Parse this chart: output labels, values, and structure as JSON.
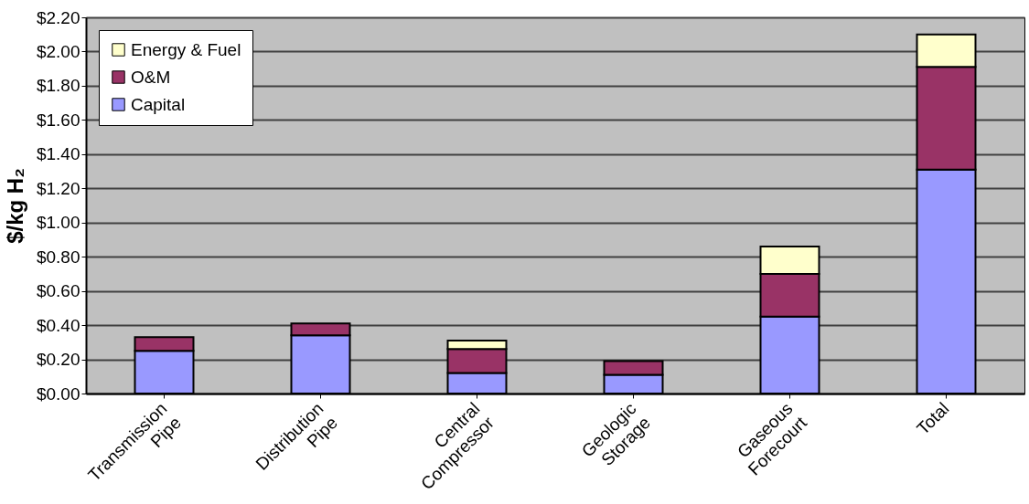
{
  "chart_data": {
    "type": "bar",
    "stacked": true,
    "ylabel": "$/kg H₂",
    "categories": [
      "Transmission\nPipe",
      "Distribution\nPipe",
      "Central\nCompressor",
      "Geologic\nStorage",
      "Gaseous\nForecourt",
      "Total"
    ],
    "series": [
      {
        "name": "Capital",
        "color": "#9999ff",
        "values": [
          0.25,
          0.34,
          0.12,
          0.11,
          0.45,
          1.31
        ]
      },
      {
        "name": "O&M",
        "color": "#993366",
        "values": [
          0.08,
          0.07,
          0.14,
          0.08,
          0.25,
          0.6
        ]
      },
      {
        "name": "Energy & Fuel",
        "color": "#ffffcc",
        "values": [
          null,
          null,
          0.05,
          null,
          0.16,
          0.19
        ]
      }
    ],
    "ylim": [
      0,
      2.2
    ],
    "yticks": [
      {
        "value": 0,
        "label": "$0.00"
      },
      {
        "value": 0.2,
        "label": "$0.20"
      },
      {
        "value": 0.4,
        "label": "$0.40"
      },
      {
        "value": 0.6,
        "label": "$0.60"
      },
      {
        "value": 0.8,
        "label": "$0.80"
      },
      {
        "value": 1.0,
        "label": "$1.00"
      },
      {
        "value": 1.2,
        "label": "$1.20"
      },
      {
        "value": 1.4,
        "label": "$1.40"
      },
      {
        "value": 1.6,
        "label": "$1.60"
      },
      {
        "value": 1.8,
        "label": "$1.80"
      },
      {
        "value": 2.0,
        "label": "$2.00"
      },
      {
        "value": 2.2,
        "label": "$2.20"
      }
    ],
    "grid": "y",
    "legend": "top left"
  }
}
